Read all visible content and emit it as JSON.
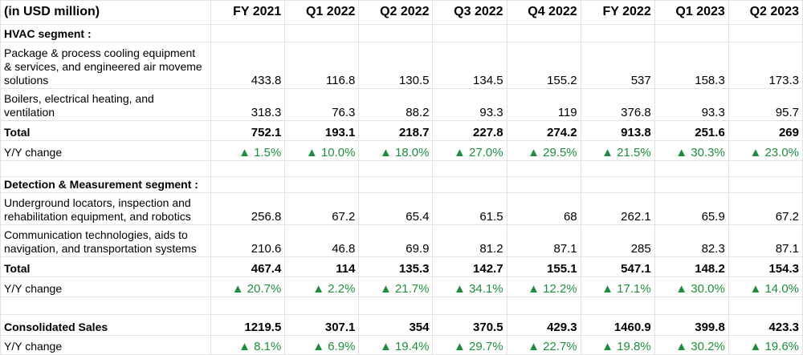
{
  "table": {
    "header": [
      "(in USD million)",
      "FY 2021",
      "Q1 2022",
      "Q2 2022",
      "Q3 2022",
      "Q4 2022",
      "FY 2022",
      "Q1 2023",
      "Q2 2023"
    ],
    "rows": [
      {
        "label": "HVAC segment :"
      },
      {
        "label": "Package & process cooling equipment\n& services, and engineered air moveme\nsolutions",
        "values": [
          433.8,
          116.8,
          130.5,
          134.5,
          155.2,
          537,
          158.3,
          173.3
        ]
      },
      {
        "label": "Boilers, electrical heating, and\nventilation",
        "values": [
          318.3,
          76.3,
          88.2,
          93.3,
          119,
          376.8,
          93.3,
          95.7
        ]
      },
      {
        "label": "Total",
        "values": [
          752.1,
          193.1,
          218.7,
          227.8,
          274.2,
          913.8,
          251.6,
          269
        ]
      },
      {
        "label": "Y/Y change",
        "values": [
          "▲ 1.5%",
          "▲ 10.0%",
          "▲ 18.0%",
          "▲ 27.0%",
          "▲ 29.5%",
          "▲ 21.5%",
          "▲ 30.3%",
          "▲ 23.0%"
        ]
      },
      {
        "label": "Detection & Measurement segment :"
      },
      {
        "label": "Underground locators, inspection and\nrehabilitation equipment, and robotics",
        "values": [
          256.8,
          67.2,
          65.4,
          61.5,
          68,
          262.1,
          65.9,
          67.2
        ]
      },
      {
        "label": "Communication technologies, aids to\nnavigation, and transportation systems",
        "values": [
          210.6,
          46.8,
          69.9,
          81.2,
          87.1,
          285,
          82.3,
          87.1
        ]
      },
      {
        "label": "Total",
        "values": [
          467.4,
          114,
          135.3,
          142.7,
          155.1,
          547.1,
          148.2,
          154.3
        ]
      },
      {
        "label": "Y/Y change",
        "values": [
          "▲ 20.7%",
          "▲ 2.2%",
          "▲ 21.7%",
          "▲ 34.1%",
          "▲ 12.2%",
          "▲ 17.1%",
          "▲ 30.0%",
          "▲ 14.0%"
        ]
      },
      {
        "label": "Consolidated Sales",
        "values": [
          1219.5,
          307.1,
          354,
          370.5,
          429.3,
          1460.9,
          399.8,
          423.3
        ]
      },
      {
        "label": "Y/Y change",
        "values": [
          "▲ 8.1%",
          "▲ 6.9%",
          "▲ 19.4%",
          "▲ 29.7%",
          "▲ 22.7%",
          "▲ 19.8%",
          "▲ 30.2%",
          "▲ 19.6%"
        ]
      }
    ]
  }
}
